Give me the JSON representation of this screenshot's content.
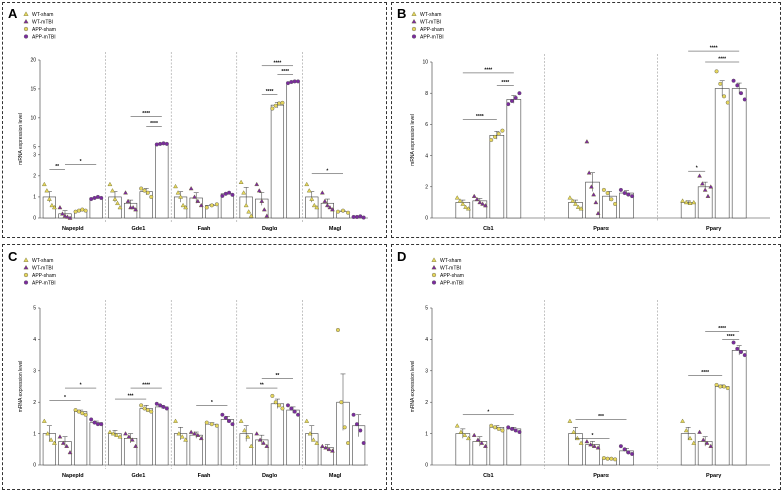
{
  "figure": {
    "panel_letters": [
      "A",
      "B",
      "C",
      "D"
    ]
  },
  "colors": {
    "wt": "#e6d65c",
    "wt_mtbi": "#7b2b9e",
    "app": "#e6d65c",
    "app_mtbi": "#7b2b9e",
    "bar_fill": "#ffffff",
    "bar_stroke": "#444444"
  },
  "chart_data": [
    {
      "type": "bar",
      "panel": "A",
      "ylabel": "mRNA expression level",
      "y_scale": "broken",
      "y_segments": [
        {
          "range": [
            0,
            3
          ],
          "ticks": [
            "0",
            "1",
            "2",
            "3"
          ]
        },
        {
          "range": [
            5,
            20
          ],
          "ticks": [
            "5",
            "10",
            "15",
            "20"
          ]
        }
      ],
      "categories": [
        "Napepld",
        "Gde1",
        "Faah",
        "Daglα",
        "Magl"
      ],
      "legend": [
        "WT-sham",
        "WT-mTBI",
        "APP-sham",
        "APP-mTBI"
      ],
      "series": [
        {
          "name": "WT-sham",
          "values": [
            1.0,
            1.0,
            1.0,
            1.0,
            1.0
          ],
          "err": [
            0.25,
            0.25,
            0.25,
            0.45,
            0.25
          ]
        },
        {
          "name": "WT-mTBI",
          "values": [
            0.2,
            0.7,
            0.95,
            0.9,
            0.7
          ],
          "err": [
            0.15,
            0.15,
            0.25,
            0.3,
            0.2
          ]
        },
        {
          "name": "APP-sham",
          "values": [
            0.35,
            1.25,
            0.6,
            12.2,
            0.3
          ],
          "err": [
            0.05,
            0.15,
            0.05,
            0.5,
            0.05
          ]
        },
        {
          "name": "APP-mTBI",
          "values": [
            0.95,
            5.5,
            1.15,
            16.2,
            0.05
          ],
          "err": [
            0.05,
            0.15,
            0.05,
            0.2,
            0.02
          ]
        }
      ],
      "points": [
        [
          [
            1.6,
            1.3,
            0.9,
            0.6,
            0.5
          ],
          [
            0.5,
            0.2,
            0.1,
            0.05,
            0.0
          ],
          [
            0.3,
            0.35,
            0.4,
            0.35
          ],
          [
            0.9,
            0.95,
            1.0,
            0.95
          ]
        ],
        [
          [
            1.6,
            1.3,
            0.9,
            0.7,
            0.5
          ],
          [
            1.2,
            0.8,
            0.5,
            0.5,
            0.4
          ],
          [
            1.4,
            1.3,
            1.2,
            1.0
          ],
          [
            5.4,
            5.5,
            5.6,
            5.5
          ]
        ],
        [
          [
            1.5,
            1.2,
            1.0,
            0.6,
            0.5
          ],
          [
            1.4,
            1.0,
            0.8,
            0.6
          ],
          [
            0.5,
            0.6,
            0.65
          ],
          [
            1.05,
            1.15,
            1.2,
            1.1
          ]
        ],
        [
          [
            1.7,
            1.2,
            0.6,
            0.3,
            0.1
          ],
          [
            1.6,
            1.3,
            0.8,
            0.4,
            0.1
          ],
          [
            11.6,
            12.1,
            12.5,
            12.6
          ],
          [
            16.0,
            16.2,
            16.3,
            16.3
          ]
        ],
        [
          [
            1.6,
            1.3,
            0.9,
            0.6,
            0.5
          ],
          [
            1.2,
            0.8,
            0.6,
            0.5,
            0.4
          ],
          [
            0.3,
            0.35,
            0.25
          ],
          [
            0.05,
            0.05,
            0.08,
            0.02
          ]
        ]
      ],
      "annotations": [
        {
          "text": "**",
          "from": [
            0,
            0
          ],
          "to": [
            0,
            1
          ],
          "y": 2.3
        },
        {
          "text": "*",
          "from": [
            0,
            1
          ],
          "to": [
            0,
            3
          ],
          "y": 2.55
        },
        {
          "text": "****",
          "from": [
            1,
            2
          ],
          "to": [
            1,
            3
          ],
          "y": 8.5
        },
        {
          "text": "****",
          "from": [
            1,
            1
          ],
          "to": [
            1,
            3
          ],
          "y": 10.2
        },
        {
          "text": "****",
          "from": [
            3,
            1
          ],
          "to": [
            3,
            2
          ],
          "y": 14.0
        },
        {
          "text": "****",
          "from": [
            3,
            2
          ],
          "to": [
            3,
            3
          ],
          "y": 17.5
        },
        {
          "text": "****",
          "from": [
            3,
            1
          ],
          "to": [
            3,
            3
          ],
          "y": 19.0
        },
        {
          "text": "*",
          "from": [
            4,
            0
          ],
          "to": [
            4,
            2
          ],
          "y": 2.1
        }
      ]
    },
    {
      "type": "bar",
      "panel": "B",
      "ylabel": "mRNA expression level",
      "ylim": [
        0,
        10
      ],
      "yticks": [
        "0",
        "2",
        "4",
        "6",
        "8",
        "10"
      ],
      "categories": [
        "Cb1",
        "Pparα",
        "Pparγ"
      ],
      "legend": [
        "WT-sham",
        "WT-mTBI",
        "APP-sham",
        "APP-mTBI"
      ],
      "series": [
        {
          "name": "WT-sham",
          "values": [
            1.0,
            1.0,
            1.0
          ],
          "err": [
            0.15,
            0.15,
            0.1
          ]
        },
        {
          "name": "WT-mTBI",
          "values": [
            1.1,
            2.3,
            2.0
          ],
          "err": [
            0.15,
            0.6,
            0.3
          ]
        },
        {
          "name": "APP-sham",
          "values": [
            5.3,
            1.4,
            8.3
          ],
          "err": [
            0.25,
            0.3,
            0.5
          ]
        },
        {
          "name": "APP-mTBI",
          "values": [
            7.6,
            1.6,
            8.3
          ],
          "err": [
            0.25,
            0.15,
            0.35
          ]
        }
      ],
      "points": [
        [
          [
            1.3,
            1.1,
            0.9,
            0.7,
            0.6
          ],
          [
            1.4,
            1.2,
            1.0,
            0.9,
            0.8
          ],
          [
            5.0,
            5.2,
            5.4,
            5.6
          ],
          [
            7.3,
            7.5,
            7.7,
            8.0
          ]
        ],
        [
          [
            1.3,
            1.1,
            0.9,
            0.7,
            0.6
          ],
          [
            4.9,
            2.9,
            2.0,
            1.5,
            1.0,
            0.3
          ],
          [
            1.8,
            1.6,
            1.2,
            0.9
          ],
          [
            1.8,
            1.6,
            1.5,
            1.4
          ]
        ],
        [
          [
            1.1,
            1.0,
            0.95,
            1.0
          ],
          [
            2.7,
            2.2,
            1.8,
            1.4,
            2.0
          ],
          [
            9.4,
            8.6,
            7.8,
            7.4
          ],
          [
            8.8,
            8.5,
            8.0,
            7.6
          ]
        ]
      ],
      "annotations": [
        {
          "text": "****",
          "from": [
            0,
            0
          ],
          "to": [
            0,
            2
          ],
          "y": 6.3
        },
        {
          "text": "****",
          "from": [
            0,
            2
          ],
          "to": [
            0,
            3
          ],
          "y": 8.5
        },
        {
          "text": "****",
          "from": [
            0,
            0
          ],
          "to": [
            0,
            3
          ],
          "y": 9.3
        },
        {
          "text": "*",
          "from": [
            2,
            0
          ],
          "to": [
            2,
            1
          ],
          "y": 3.0
        },
        {
          "text": "****",
          "from": [
            2,
            1
          ],
          "to": [
            2,
            3
          ],
          "y": 10.0
        },
        {
          "text": "****",
          "from": [
            2,
            0
          ],
          "to": [
            2,
            3
          ],
          "y": 10.7
        }
      ]
    },
    {
      "type": "bar",
      "panel": "C",
      "ylabel": "mRNA expression level",
      "ylim": [
        0,
        5
      ],
      "yticks": [
        "0",
        "1",
        "2",
        "3",
        "4",
        "5"
      ],
      "categories": [
        "Napepld",
        "Gde1",
        "Faah",
        "Daglo",
        "Magl"
      ],
      "legend": [
        "WT-sham",
        "WT-mTBI",
        "APP-sham",
        "APP-mTBI"
      ],
      "series": [
        {
          "name": "WT-sham",
          "values": [
            1.0,
            1.0,
            1.0,
            1.0,
            1.0
          ],
          "err": [
            0.25,
            0.1,
            0.2,
            0.25,
            0.25
          ]
        },
        {
          "name": "WT-mTBI",
          "values": [
            0.75,
            0.85,
            0.95,
            0.8,
            0.55
          ],
          "err": [
            0.15,
            0.15,
            0.1,
            0.15,
            0.1
          ]
        },
        {
          "name": "APP-sham",
          "values": [
            1.7,
            1.8,
            1.3,
            1.95,
            2.0
          ],
          "err": [
            0.05,
            0.1,
            0.05,
            0.15,
            0.9
          ]
        },
        {
          "name": "APP-mTBI",
          "values": [
            1.35,
            1.85,
            1.45,
            1.75,
            1.25
          ],
          "err": [
            0.05,
            0.05,
            0.1,
            0.1,
            0.35
          ]
        }
      ],
      "points": [
        [
          [
            1.4,
            1.0,
            0.8,
            0.7
          ],
          [
            0.9,
            0.7,
            0.6,
            0.4
          ],
          [
            1.75,
            1.7,
            1.65,
            1.6
          ],
          [
            1.45,
            1.35,
            1.3,
            1.3
          ]
        ],
        [
          [
            1.05,
            1.0,
            0.95,
            0.9
          ],
          [
            1.0,
            0.9,
            0.8,
            0.6
          ],
          [
            1.9,
            1.8,
            1.75,
            1.7
          ],
          [
            1.95,
            1.9,
            1.85,
            1.8
          ]
        ],
        [
          [
            1.4,
            1.0,
            0.9,
            0.8
          ],
          [
            1.05,
            1.0,
            0.95,
            0.85
          ],
          [
            1.35,
            1.3,
            1.25
          ],
          [
            1.6,
            1.5,
            1.4,
            1.3
          ]
        ],
        [
          [
            1.4,
            1.1,
            0.9,
            0.6
          ],
          [
            1.0,
            0.8,
            0.7,
            0.6
          ],
          [
            2.2,
            2.0,
            1.9,
            1.8
          ],
          [
            1.9,
            1.8,
            1.7,
            1.6
          ]
        ],
        [
          [
            1.4,
            1.0,
            0.8,
            0.7
          ],
          [
            0.6,
            0.55,
            0.5,
            0.45
          ],
          [
            4.3,
            2.0,
            1.2,
            0.7
          ],
          [
            1.6,
            1.3,
            1.1,
            0.7
          ]
        ]
      ],
      "annotations": [
        {
          "text": "*",
          "from": [
            0,
            0
          ],
          "to": [
            0,
            2
          ],
          "y": 2.05
        },
        {
          "text": "*",
          "from": [
            0,
            1
          ],
          "to": [
            0,
            3
          ],
          "y": 2.45
        },
        {
          "text": "***",
          "from": [
            1,
            0
          ],
          "to": [
            1,
            2
          ],
          "y": 2.1
        },
        {
          "text": "****",
          "from": [
            1,
            1
          ],
          "to": [
            1,
            3
          ],
          "y": 2.45
        },
        {
          "text": "*",
          "from": [
            2,
            1
          ],
          "to": [
            2,
            3
          ],
          "y": 1.9
        },
        {
          "text": "**",
          "from": [
            3,
            0
          ],
          "to": [
            3,
            2
          ],
          "y": 2.45
        },
        {
          "text": "**",
          "from": [
            3,
            1
          ],
          "to": [
            3,
            3
          ],
          "y": 2.75
        }
      ]
    },
    {
      "type": "bar",
      "panel": "D",
      "ylabel": "mRNA expression level",
      "ylim": [
        0,
        5
      ],
      "yticks": [
        "0",
        "1",
        "2",
        "3",
        "4",
        "5"
      ],
      "categories": [
        "Cb1",
        "Pparα",
        "Pparγ"
      ],
      "legend": [
        "WT-sham",
        "WT-mTBI",
        "APP-sham",
        "APP-mTBI"
      ],
      "series": [
        {
          "name": "WT-sham",
          "values": [
            1.0,
            1.0,
            1.0
          ],
          "err": [
            0.15,
            0.2,
            0.2
          ]
        },
        {
          "name": "WT-mTBI",
          "values": [
            0.75,
            0.65,
            0.75
          ],
          "err": [
            0.15,
            0.1,
            0.15
          ]
        },
        {
          "name": "APP-sham",
          "values": [
            1.2,
            0.2,
            2.5
          ],
          "err": [
            0.05,
            0.02,
            0.05
          ]
        },
        {
          "name": "APP-mTBI",
          "values": [
            1.15,
            0.45,
            3.65
          ],
          "err": [
            0.05,
            0.08,
            0.15
          ]
        }
      ],
      "points": [
        [
          [
            1.25,
            1.05,
            0.95,
            0.85
          ],
          [
            0.95,
            0.8,
            0.7,
            0.6
          ],
          [
            1.25,
            1.2,
            1.15,
            1.1
          ],
          [
            1.2,
            1.15,
            1.1,
            1.05
          ]
        ],
        [
          [
            1.4,
            1.05,
            0.85,
            0.7
          ],
          [
            0.75,
            0.65,
            0.6,
            0.55
          ],
          [
            0.22,
            0.2,
            0.2,
            0.18
          ],
          [
            0.6,
            0.5,
            0.4,
            0.35
          ]
        ],
        [
          [
            1.4,
            1.1,
            0.85,
            0.7
          ],
          [
            1.05,
            0.8,
            0.7,
            0.6
          ],
          [
            2.55,
            2.5,
            2.5,
            2.45
          ],
          [
            3.9,
            3.7,
            3.6,
            3.5
          ]
        ]
      ],
      "annotations": [
        {
          "text": "*",
          "from": [
            0,
            0
          ],
          "to": [
            0,
            3
          ],
          "y": 1.6
        },
        {
          "text": "*",
          "from": [
            1,
            0
          ],
          "to": [
            1,
            2
          ],
          "y": 0.85
        },
        {
          "text": "***",
          "from": [
            1,
            0
          ],
          "to": [
            1,
            3
          ],
          "y": 1.45
        },
        {
          "text": "****",
          "from": [
            2,
            0
          ],
          "to": [
            2,
            2
          ],
          "y": 2.85
        },
        {
          "text": "****",
          "from": [
            2,
            2
          ],
          "to": [
            2,
            3
          ],
          "y": 4.0
        },
        {
          "text": "****",
          "from": [
            2,
            1
          ],
          "to": [
            2,
            3
          ],
          "y": 4.25
        }
      ]
    }
  ]
}
